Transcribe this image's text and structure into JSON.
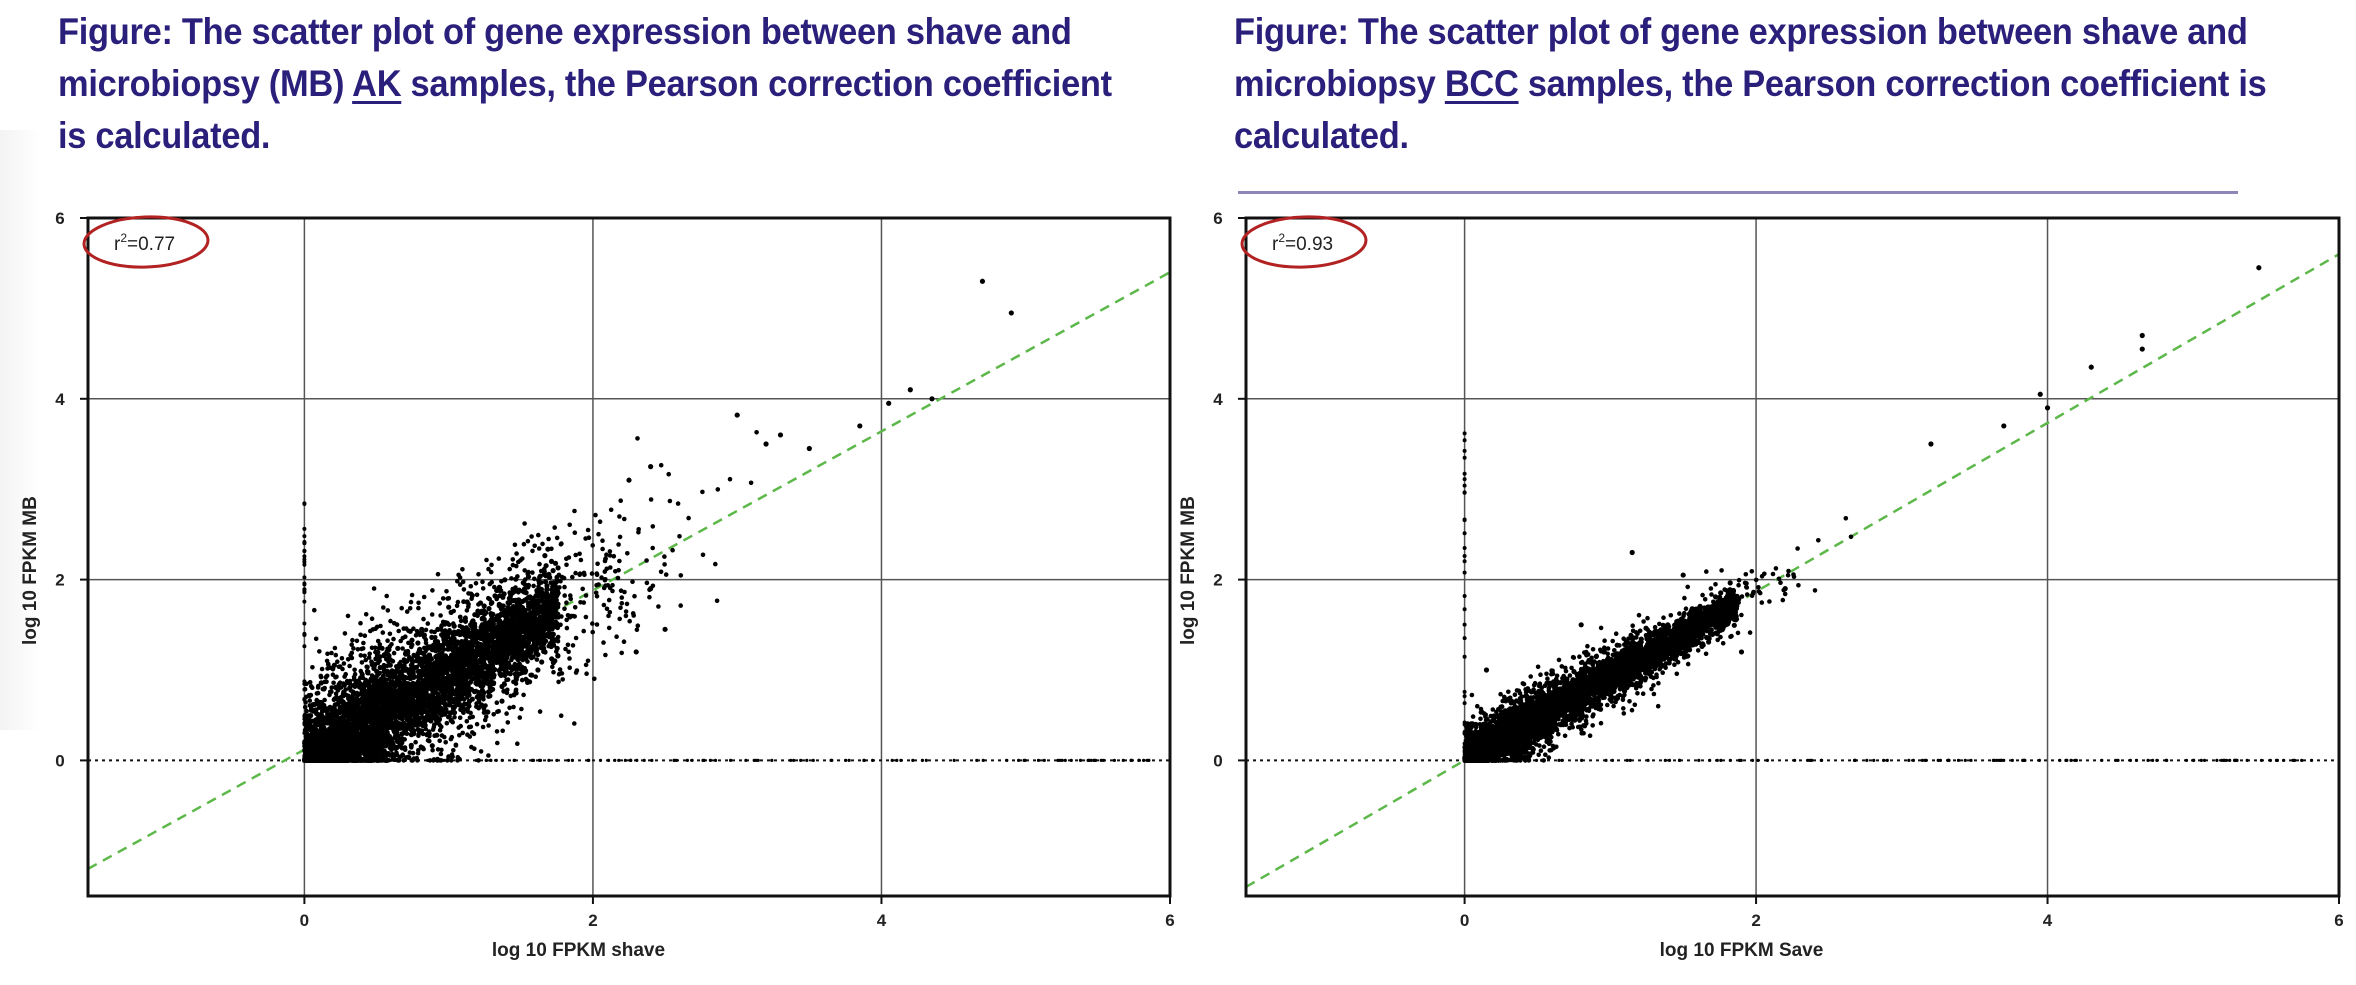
{
  "captions": {
    "left": {
      "prefix": "Figure: The scatter plot of gene expression between shave and microbiopsy (MB) ",
      "emph": "AK",
      "suffix": " samples, the Pearson correction coefficient is calculated."
    },
    "right": {
      "prefix": "Figure: The scatter plot of gene expression between shave and microbiopsy ",
      "emph": "BCC",
      "suffix": " samples, the Pearson correction coefficient is calculated."
    }
  },
  "colors": {
    "caption": "#2a1f7a",
    "rule": "#8c87b8",
    "points": "#000000",
    "fit_line": "#5db84a",
    "annotation_circle": "#b22222",
    "grid": "#555555"
  },
  "chart_data": [
    {
      "type": "scatter",
      "title": "Shave vs microbiopsy (MB) AK samples",
      "annotation": "r²=0.77",
      "annotation_base": "r",
      "annotation_sup": "2",
      "annotation_value": "=0.77",
      "r_squared": 0.77,
      "xlabel": "log 10 FPKM shave",
      "ylabel": "log 10 FPKM MB",
      "xlim": [
        -1.5,
        6
      ],
      "ylim": [
        -1.5,
        6
      ],
      "xticks": [
        0,
        2,
        4,
        6
      ],
      "yticks": [
        0,
        2,
        4,
        6
      ],
      "xtick_labels": [
        "0",
        "2",
        "4",
        "6"
      ],
      "ytick_labels": [
        "0",
        "2",
        "4",
        "6"
      ],
      "grid": true,
      "reference_line": {
        "style": "dashed",
        "color": "green",
        "from": [
          -1.5,
          -1.2
        ],
        "to": [
          6,
          5.4
        ]
      },
      "zero_lines": {
        "style": "dotted"
      },
      "cloud": {
        "n": 2600,
        "x_center": 0.9,
        "x_spread": 0.75,
        "slope": 0.95,
        "y_noise": 0.42,
        "x_max": 3.2
      },
      "outliers": [
        [
          4.7,
          5.3
        ],
        [
          4.9,
          4.95
        ],
        [
          4.2,
          4.1
        ],
        [
          4.05,
          3.95
        ],
        [
          3.0,
          3.82
        ],
        [
          3.2,
          3.5
        ],
        [
          3.5,
          3.45
        ],
        [
          2.4,
          3.25
        ],
        [
          2.25,
          3.1
        ],
        [
          2.4,
          1.9
        ],
        [
          2.5,
          1.45
        ],
        [
          2.3,
          1.2
        ],
        [
          1.6,
          1.3
        ],
        [
          3.85,
          3.7
        ],
        [
          4.35,
          4.0
        ],
        [
          3.3,
          3.6
        ]
      ],
      "x0_column": {
        "y_top": 2.85,
        "n": 40
      },
      "summary": "Dense cloud from (0,0) to ~(3,3) with wide scatter; points pile on x=0 and y=0"
    },
    {
      "type": "scatter",
      "title": "Shave vs microbiopsy BCC samples",
      "annotation": "r²=0.93",
      "annotation_base": "r",
      "annotation_sup": "2",
      "annotation_value": "=0.93",
      "r_squared": 0.93,
      "xlabel": "log 10 FPKM Save",
      "ylabel": "log 10 FPKM MB",
      "xlim": [
        -1.5,
        6
      ],
      "ylim": [
        -1.5,
        6
      ],
      "xticks": [
        0,
        2,
        4,
        6
      ],
      "yticks": [
        0,
        2,
        4,
        6
      ],
      "xtick_labels": [
        "0",
        "2",
        "4",
        "6"
      ],
      "ytick_labels": [
        "0",
        "2",
        "4",
        "6"
      ],
      "grid": true,
      "reference_line": {
        "style": "dashed",
        "color": "green",
        "from": [
          -1.5,
          -1.4
        ],
        "to": [
          6,
          5.6
        ]
      },
      "zero_lines": {
        "style": "dotted"
      },
      "cloud": {
        "n": 2600,
        "x_center": 0.7,
        "x_spread": 0.65,
        "slope": 0.93,
        "y_noise": 0.17,
        "x_max": 3.4
      },
      "outliers": [
        [
          5.45,
          5.45
        ],
        [
          4.65,
          4.7
        ],
        [
          4.65,
          4.55
        ],
        [
          4.3,
          4.35
        ],
        [
          3.95,
          4.05
        ],
        [
          4.0,
          3.9
        ],
        [
          3.7,
          3.7
        ],
        [
          3.2,
          3.5
        ],
        [
          1.5,
          2.05
        ],
        [
          1.15,
          2.3
        ],
        [
          0.15,
          1.0
        ],
        [
          0.8,
          1.5
        ],
        [
          1.6,
          1.5
        ],
        [
          2.2,
          1.9
        ],
        [
          1.9,
          1.2
        ]
      ],
      "x0_column": {
        "y_top": 3.75,
        "n": 30
      },
      "summary": "Tight cloud along diagonal from (0,0) to ~(3.5,3.4); narrow spread"
    }
  ]
}
